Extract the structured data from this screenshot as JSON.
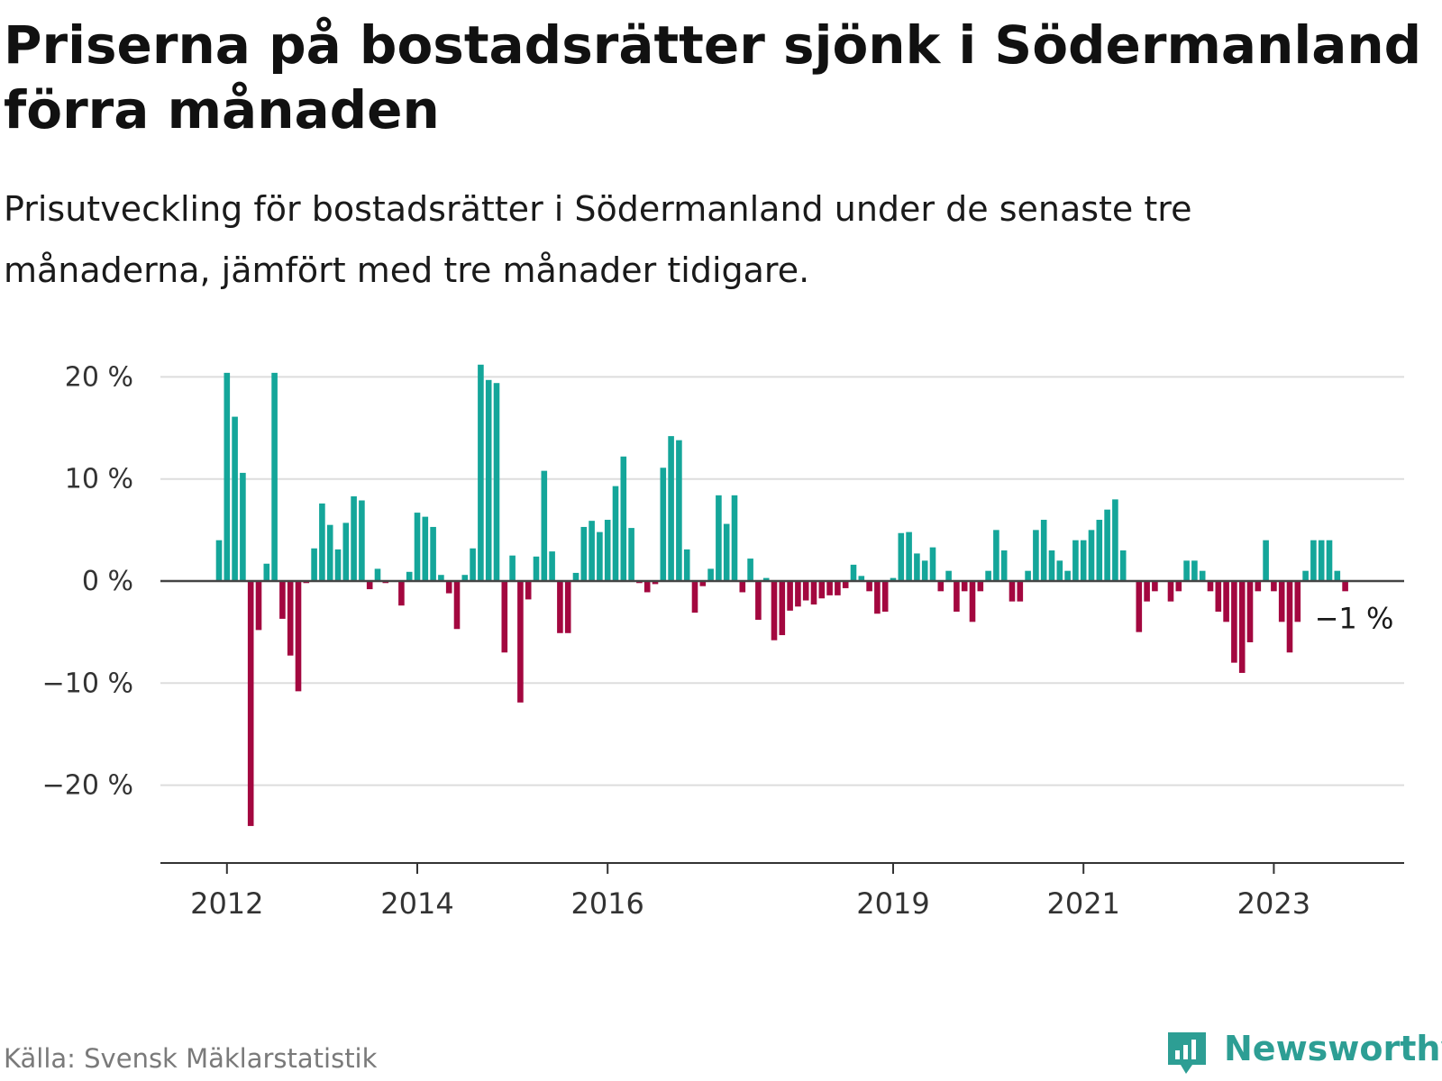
{
  "title": "Priserna på bostadsrätter sjönk i Södermanland förra månaden",
  "subtitle": "Prisutveckling för bostadsrätter i Södermanland under de senaste tre månaderna, jämfört med tre månader tidigare.",
  "source": "Källa: Svensk Mäklarstatistik",
  "brand": "Newsworthy",
  "colors": {
    "positive": "#14a69a",
    "negative": "#a3073f",
    "grid": "#dddddd",
    "axis": "#333333",
    "brand": "#2d9e94"
  },
  "chart_data": {
    "type": "bar",
    "title": "Priserna på bostadsrätter sjönk i Södermanland förra månaden",
    "subtitle": "Prisutveckling för bostadsrätter i Södermanland under de senaste tre månaderna, jämfört med tre månader tidigare.",
    "ylim": [
      -27,
      20
    ],
    "yticks": [
      20,
      10,
      0,
      -10,
      -20
    ],
    "ytick_labels": [
      "20 %",
      "10 %",
      "0 %",
      "−10 %",
      "−20 %"
    ],
    "xticks": [
      "2012-01",
      "2014-01",
      "2016-01",
      "2019-01",
      "2021-01",
      "2023-01"
    ],
    "xtick_labels": [
      "2012",
      "2014",
      "2016",
      "2019",
      "2021",
      "2023"
    ],
    "grid": true,
    "annotation": {
      "text": "−1 %",
      "x": "2023-10",
      "y": -1
    },
    "x": [
      "2011-12",
      "2012-01",
      "2012-02",
      "2012-03",
      "2012-04",
      "2012-05",
      "2012-06",
      "2012-07",
      "2012-08",
      "2012-09",
      "2012-10",
      "2012-11",
      "2012-12",
      "2013-01",
      "2013-02",
      "2013-03",
      "2013-04",
      "2013-05",
      "2013-06",
      "2013-07",
      "2013-08",
      "2013-09",
      "2013-10",
      "2013-11",
      "2013-12",
      "2014-01",
      "2014-02",
      "2014-03",
      "2014-04",
      "2014-05",
      "2014-06",
      "2014-07",
      "2014-08",
      "2014-09",
      "2014-10",
      "2014-11",
      "2014-12",
      "2015-01",
      "2015-02",
      "2015-03",
      "2015-04",
      "2015-05",
      "2015-06",
      "2015-07",
      "2015-08",
      "2015-09",
      "2015-10",
      "2015-11",
      "2015-12",
      "2016-01",
      "2016-02",
      "2016-03",
      "2016-04",
      "2016-05",
      "2016-06",
      "2016-07",
      "2016-08",
      "2016-09",
      "2016-10",
      "2016-11",
      "2016-12",
      "2017-01",
      "2017-02",
      "2017-03",
      "2017-04",
      "2017-05",
      "2017-06",
      "2017-07",
      "2017-08",
      "2017-09",
      "2017-10",
      "2017-11",
      "2017-12",
      "2018-01",
      "2018-02",
      "2018-03",
      "2018-04",
      "2018-05",
      "2018-06",
      "2018-07",
      "2018-08",
      "2018-09",
      "2018-10",
      "2018-11",
      "2018-12",
      "2019-01",
      "2019-02",
      "2019-03",
      "2019-04",
      "2019-05",
      "2019-06",
      "2019-07",
      "2019-08",
      "2019-09",
      "2019-10",
      "2019-11",
      "2019-12",
      "2020-01",
      "2020-02",
      "2020-03",
      "2020-04",
      "2020-05",
      "2020-06",
      "2020-07",
      "2020-08",
      "2020-09",
      "2020-10",
      "2020-11",
      "2020-12",
      "2021-01",
      "2021-02",
      "2021-03",
      "2021-04",
      "2021-05",
      "2021-06",
      "2021-07",
      "2021-08",
      "2021-09",
      "2021-10",
      "2021-11",
      "2021-12",
      "2022-01",
      "2022-02",
      "2022-03",
      "2022-04",
      "2022-05",
      "2022-06",
      "2022-07",
      "2022-08",
      "2022-09",
      "2022-10",
      "2022-11",
      "2022-12",
      "2023-01",
      "2023-02",
      "2023-03",
      "2023-04",
      "2023-05",
      "2023-06",
      "2023-07",
      "2023-08",
      "2023-09",
      "2023-10"
    ],
    "values": [
      4,
      20.4,
      16.1,
      10.6,
      -24,
      -4.8,
      1.7,
      20.4,
      -3.7,
      -7.3,
      -10.8,
      -0.2,
      3.2,
      7.6,
      5.5,
      3.1,
      5.7,
      8.3,
      7.9,
      -0.8,
      1.2,
      -0.2,
      0,
      -2.4,
      0.9,
      6.7,
      6.3,
      5.3,
      0.6,
      -1.2,
      -4.7,
      0.6,
      3.2,
      21.2,
      19.7,
      19.4,
      -7,
      2.5,
      -11.9,
      -1.8,
      2.4,
      10.8,
      2.9,
      -5.1,
      -5.1,
      0.8,
      5.3,
      5.9,
      4.8,
      6,
      9.3,
      12.2,
      5.2,
      -0.2,
      -1.1,
      -0.3,
      11.1,
      14.2,
      13.8,
      3.1,
      -3.1,
      -0.5,
      1.2,
      8.4,
      5.6,
      8.4,
      -1.1,
      2.2,
      -3.8,
      0.3,
      -5.8,
      -5.3,
      -2.9,
      -2.5,
      -1.9,
      -2.3,
      -1.7,
      -1.4,
      -1.4,
      -0.7,
      1.6,
      0.5,
      -1,
      -3.2,
      -3,
      0.3,
      4.7,
      4.8,
      2.7,
      2,
      3.3,
      -1,
      1,
      -3,
      -1,
      -4,
      -1,
      1,
      5,
      3,
      -2,
      -2,
      1,
      5,
      6,
      3,
      2,
      1,
      4,
      4,
      5,
      6,
      7,
      8,
      3,
      0,
      -5,
      -2,
      -1,
      0,
      -2,
      -1,
      2,
      2,
      1,
      -1,
      -3,
      -4,
      -8,
      -9,
      -6,
      -1,
      4,
      -1,
      -4,
      -7,
      -4,
      1,
      4,
      4,
      4,
      1,
      -1
    ]
  }
}
